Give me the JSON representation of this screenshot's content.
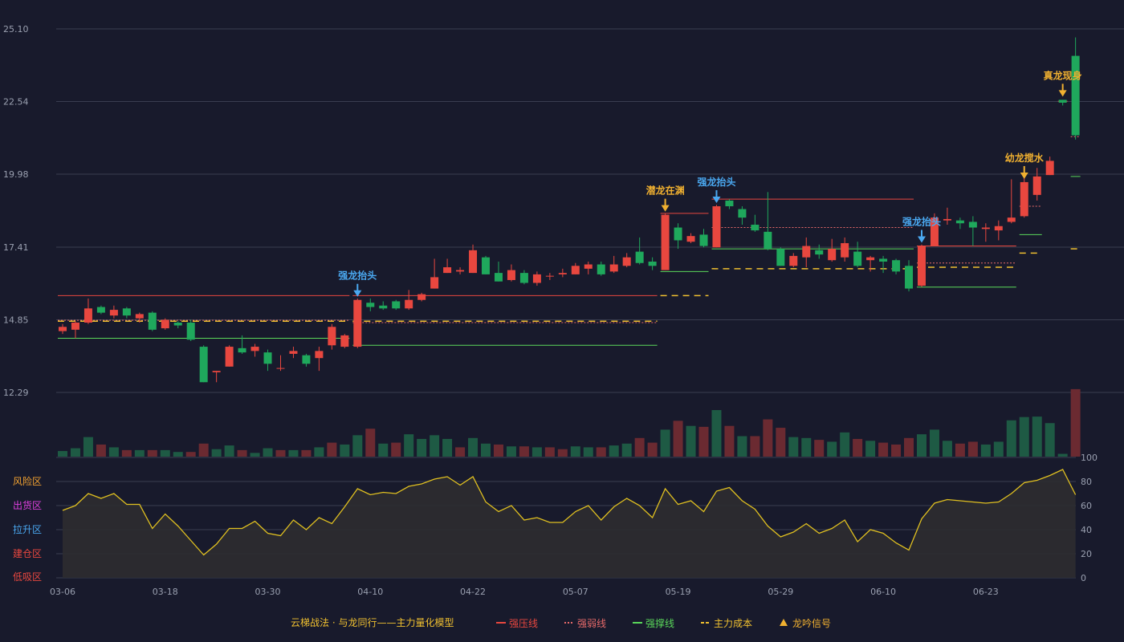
{
  "colors": {
    "background": "#181a2c",
    "grid": "#3a3d50",
    "up": "#e8473f",
    "down": "#1fa85c",
    "vol_up": "#6b2a31",
    "vol_down": "#1e5a44",
    "resist": "#e8473f",
    "weak": "#e86a6a",
    "support": "#5ad85a",
    "cost": "#f0c030",
    "signal": "#f0b030",
    "signal_blue": "#4aa8f0",
    "osc_line": "#e0c020",
    "osc_fill": "#2e2c30"
  },
  "legend": {
    "title": "云梯战法 · 与龙同行——主力量化模型",
    "items": [
      {
        "label": "强压线",
        "color": "#e8473f",
        "style": "solid"
      },
      {
        "label": "强弱线",
        "color": "#e86a6a",
        "style": "dotted"
      },
      {
        "label": "强撑线",
        "color": "#5ad85a",
        "style": "solid"
      },
      {
        "label": "主力成本",
        "color": "#f0c030",
        "style": "dashed"
      },
      {
        "label": "龙吟信号",
        "color": "#f0b030",
        "style": "triangle"
      }
    ]
  },
  "chart_data": {
    "type": "candlestick",
    "y_ticks": [
      "25.10",
      "22.54",
      "19.98",
      "17.41",
      "14.85",
      "12.29"
    ],
    "ylim": [
      12.29,
      25.1
    ],
    "x_ticks": [
      {
        "label": "03-06",
        "index": 0
      },
      {
        "label": "03-18",
        "index": 8
      },
      {
        "label": "03-30",
        "index": 16
      },
      {
        "label": "04-10",
        "index": 24
      },
      {
        "label": "04-22",
        "index": 32
      },
      {
        "label": "05-07",
        "index": 40
      },
      {
        "label": "05-19",
        "index": 48
      },
      {
        "label": "05-29",
        "index": 56
      },
      {
        "label": "06-10",
        "index": 64
      },
      {
        "label": "06-23",
        "index": 72
      }
    ],
    "candles": [
      [
        14.45,
        14.6,
        14.7,
        14.35
      ],
      [
        14.5,
        14.75,
        14.8,
        14.2
      ],
      [
        14.75,
        15.25,
        15.6,
        14.7
      ],
      [
        15.3,
        15.1,
        15.35,
        15.05
      ],
      [
        15.0,
        15.2,
        15.35,
        14.9
      ],
      [
        15.25,
        15.0,
        15.3,
        14.9
      ],
      [
        14.9,
        15.05,
        15.1,
        14.75
      ],
      [
        15.1,
        14.5,
        15.15,
        14.45
      ],
      [
        14.55,
        14.85,
        14.9,
        14.5
      ],
      [
        14.75,
        14.65,
        14.8,
        14.55
      ],
      [
        14.75,
        14.15,
        14.85,
        14.1
      ],
      [
        13.9,
        12.65,
        13.95,
        12.65
      ],
      [
        13.0,
        13.05,
        13.05,
        12.65
      ],
      [
        13.2,
        13.9,
        13.95,
        13.2
      ],
      [
        13.85,
        13.7,
        14.3,
        13.65
      ],
      [
        13.75,
        13.9,
        14.0,
        13.55
      ],
      [
        13.7,
        13.3,
        13.8,
        13.05
      ],
      [
        13.15,
        13.15,
        13.6,
        13.05
      ],
      [
        13.65,
        13.75,
        13.9,
        13.5
      ],
      [
        13.6,
        13.3,
        13.65,
        13.2
      ],
      [
        13.5,
        13.75,
        13.9,
        13.05
      ],
      [
        13.95,
        14.6,
        14.7,
        13.8
      ],
      [
        13.9,
        14.3,
        14.35,
        13.85
      ],
      [
        13.9,
        15.55,
        15.6,
        13.85
      ],
      [
        15.45,
        15.3,
        15.6,
        15.15
      ],
      [
        15.35,
        15.25,
        15.5,
        15.2
      ],
      [
        15.5,
        15.25,
        15.55,
        15.2
      ],
      [
        15.25,
        15.55,
        15.9,
        15.2
      ],
      [
        15.55,
        15.75,
        15.8,
        15.5
      ],
      [
        15.95,
        16.35,
        17.0,
        15.95
      ],
      [
        16.5,
        16.7,
        17.0,
        16.5
      ],
      [
        16.55,
        16.6,
        16.7,
        16.45
      ],
      [
        16.5,
        17.3,
        17.5,
        16.5
      ],
      [
        17.05,
        16.45,
        17.1,
        16.45
      ],
      [
        16.5,
        16.2,
        16.9,
        16.2
      ],
      [
        16.25,
        16.6,
        16.8,
        16.2
      ],
      [
        16.5,
        16.15,
        16.6,
        16.1
      ],
      [
        16.15,
        16.45,
        16.55,
        16.05
      ],
      [
        16.4,
        16.4,
        16.5,
        16.25
      ],
      [
        16.45,
        16.5,
        16.65,
        16.35
      ],
      [
        16.45,
        16.75,
        16.85,
        16.45
      ],
      [
        16.65,
        16.8,
        16.9,
        16.45
      ],
      [
        16.8,
        16.45,
        16.9,
        16.4
      ],
      [
        16.55,
        16.8,
        17.1,
        16.5
      ],
      [
        16.75,
        17.05,
        17.2,
        16.7
      ],
      [
        17.25,
        16.85,
        17.75,
        16.8
      ],
      [
        16.9,
        16.75,
        17.05,
        16.6
      ],
      [
        16.6,
        18.55,
        18.6,
        16.6
      ],
      [
        18.1,
        17.65,
        18.25,
        17.35
      ],
      [
        17.6,
        17.8,
        17.9,
        17.55
      ],
      [
        17.85,
        17.45,
        18.05,
        17.4
      ],
      [
        17.4,
        18.85,
        18.9,
        17.4
      ],
      [
        19.05,
        18.85,
        19.1,
        18.75
      ],
      [
        18.75,
        18.45,
        18.85,
        18.2
      ],
      [
        18.2,
        18.0,
        18.55,
        17.95
      ],
      [
        17.95,
        17.35,
        19.35,
        17.3
      ],
      [
        17.35,
        16.75,
        17.4,
        16.75
      ],
      [
        16.75,
        17.1,
        17.2,
        16.7
      ],
      [
        17.05,
        17.45,
        17.75,
        16.7
      ],
      [
        17.3,
        17.15,
        17.5,
        17.0
      ],
      [
        16.95,
        17.35,
        17.7,
        16.9
      ],
      [
        17.05,
        17.55,
        17.75,
        16.9
      ],
      [
        17.25,
        16.75,
        17.6,
        16.7
      ],
      [
        16.95,
        17.05,
        17.1,
        16.55
      ],
      [
        17.0,
        16.9,
        17.1,
        16.5
      ],
      [
        16.95,
        16.55,
        17.0,
        16.45
      ],
      [
        16.75,
        15.95,
        16.95,
        15.85
      ],
      [
        16.05,
        17.45,
        17.5,
        16.0
      ],
      [
        17.45,
        18.45,
        18.6,
        17.45
      ],
      [
        18.35,
        18.4,
        18.8,
        18.2
      ],
      [
        18.35,
        18.25,
        18.45,
        18.05
      ],
      [
        18.3,
        18.1,
        18.5,
        17.45
      ],
      [
        18.05,
        18.1,
        18.25,
        17.6
      ],
      [
        18.0,
        18.15,
        18.35,
        17.65
      ],
      [
        18.3,
        18.45,
        19.8,
        18.25
      ],
      [
        18.5,
        19.7,
        19.95,
        18.45
      ],
      [
        19.25,
        19.9,
        20.2,
        19.05
      ],
      [
        19.95,
        20.45,
        20.6,
        19.95
      ],
      [
        22.6,
        22.5,
        22.6,
        22.4
      ],
      [
        24.15,
        21.35,
        24.8,
        21.2
      ]
    ],
    "volume": [
      [
        0.12,
        "d"
      ],
      [
        0.18,
        "d"
      ],
      [
        0.42,
        "d"
      ],
      [
        0.26,
        "u"
      ],
      [
        0.2,
        "d"
      ],
      [
        0.14,
        "u"
      ],
      [
        0.14,
        "d"
      ],
      [
        0.14,
        "u"
      ],
      [
        0.14,
        "d"
      ],
      [
        0.1,
        "d"
      ],
      [
        0.1,
        "u"
      ],
      [
        0.28,
        "u"
      ],
      [
        0.16,
        "d"
      ],
      [
        0.24,
        "d"
      ],
      [
        0.14,
        "u"
      ],
      [
        0.08,
        "d"
      ],
      [
        0.18,
        "d"
      ],
      [
        0.14,
        "u"
      ],
      [
        0.14,
        "d"
      ],
      [
        0.14,
        "u"
      ],
      [
        0.2,
        "d"
      ],
      [
        0.3,
        "u"
      ],
      [
        0.26,
        "d"
      ],
      [
        0.46,
        "d"
      ],
      [
        0.6,
        "u"
      ],
      [
        0.28,
        "d"
      ],
      [
        0.3,
        "u"
      ],
      [
        0.48,
        "d"
      ],
      [
        0.38,
        "d"
      ],
      [
        0.46,
        "d"
      ],
      [
        0.38,
        "d"
      ],
      [
        0.2,
        "u"
      ],
      [
        0.4,
        "d"
      ],
      [
        0.28,
        "d"
      ],
      [
        0.26,
        "u"
      ],
      [
        0.22,
        "d"
      ],
      [
        0.22,
        "u"
      ],
      [
        0.2,
        "d"
      ],
      [
        0.2,
        "u"
      ],
      [
        0.16,
        "u"
      ],
      [
        0.22,
        "d"
      ],
      [
        0.2,
        "d"
      ],
      [
        0.2,
        "u"
      ],
      [
        0.24,
        "d"
      ],
      [
        0.28,
        "d"
      ],
      [
        0.4,
        "u"
      ],
      [
        0.3,
        "u"
      ],
      [
        0.58,
        "d"
      ],
      [
        0.77,
        "u"
      ],
      [
        0.66,
        "d"
      ],
      [
        0.64,
        "u"
      ],
      [
        1.0,
        "d"
      ],
      [
        0.66,
        "u"
      ],
      [
        0.44,
        "d"
      ],
      [
        0.44,
        "u"
      ],
      [
        0.8,
        "u"
      ],
      [
        0.62,
        "u"
      ],
      [
        0.42,
        "d"
      ],
      [
        0.4,
        "d"
      ],
      [
        0.36,
        "u"
      ],
      [
        0.32,
        "d"
      ],
      [
        0.52,
        "d"
      ],
      [
        0.38,
        "u"
      ],
      [
        0.34,
        "d"
      ],
      [
        0.3,
        "u"
      ],
      [
        0.26,
        "u"
      ],
      [
        0.4,
        "u"
      ],
      [
        0.48,
        "d"
      ],
      [
        0.58,
        "d"
      ],
      [
        0.34,
        "d"
      ],
      [
        0.28,
        "u"
      ],
      [
        0.32,
        "u"
      ],
      [
        0.26,
        "d"
      ],
      [
        0.32,
        "d"
      ],
      [
        0.78,
        "d"
      ],
      [
        0.85,
        "d"
      ],
      [
        0.86,
        "d"
      ],
      [
        0.72,
        "d"
      ],
      [
        0.06,
        "d"
      ],
      [
        1.45,
        "u"
      ]
    ],
    "oscillator": {
      "values": [
        56,
        60,
        70,
        66,
        70,
        61,
        61,
        41,
        53,
        43,
        31,
        19,
        28,
        41,
        41,
        47,
        37,
        35,
        48,
        40,
        50,
        45,
        59,
        74,
        69,
        71,
        70,
        76,
        78,
        82,
        84,
        77,
        84,
        63,
        55,
        60,
        48,
        50,
        46,
        46,
        55,
        60,
        48,
        59,
        66,
        60,
        50,
        74,
        61,
        64,
        55,
        72,
        75,
        64,
        57,
        43,
        34,
        38,
        45,
        37,
        41,
        48,
        30,
        40,
        37,
        29,
        23,
        49,
        62,
        65,
        64,
        63,
        62,
        63,
        70,
        79,
        81,
        85,
        90,
        69
      ],
      "ylim": [
        0,
        100
      ],
      "y_ticks": [
        "100",
        "80",
        "60",
        "40",
        "20",
        "0"
      ],
      "zones": [
        {
          "label": "风险区",
          "color": "#f0a030"
        },
        {
          "label": "出货区",
          "color": "#e040e0"
        },
        {
          "label": "拉升区",
          "color": "#4aa8f0"
        },
        {
          "label": "建仓区",
          "color": "#e8473f"
        },
        {
          "label": "低吸区",
          "color": "#e8473f"
        }
      ]
    },
    "lines": [
      {
        "kind": "resist",
        "from": 0,
        "to": 22,
        "y": 15.7
      },
      {
        "kind": "weak",
        "from": 0,
        "to": 22,
        "y": 14.83
      },
      {
        "kind": "cost",
        "from": 0,
        "to": 22,
        "y": 14.8
      },
      {
        "kind": "support",
        "from": 0,
        "to": 22,
        "y": 14.2
      },
      {
        "kind": "resist",
        "from": 23,
        "to": 46,
        "y": 15.7
      },
      {
        "kind": "weak",
        "from": 23,
        "to": 46,
        "y": 14.75
      },
      {
        "kind": "cost",
        "from": 23,
        "to": 46,
        "y": 14.8
      },
      {
        "kind": "support",
        "from": 23,
        "to": 46,
        "y": 13.95
      },
      {
        "kind": "resist",
        "from": 47,
        "to": 50,
        "y": 18.6
      },
      {
        "kind": "support",
        "from": 47,
        "to": 50,
        "y": 16.55
      },
      {
        "kind": "cost",
        "from": 47,
        "to": 50,
        "y": 15.7
      },
      {
        "kind": "resist",
        "from": 51,
        "to": 66,
        "y": 19.1
      },
      {
        "kind": "weak",
        "from": 51,
        "to": 66,
        "y": 18.1
      },
      {
        "kind": "support",
        "from": 51,
        "to": 66,
        "y": 17.35
      },
      {
        "kind": "cost",
        "from": 51,
        "to": 66,
        "y": 16.65
      },
      {
        "kind": "resist",
        "from": 67,
        "to": 74,
        "y": 17.45
      },
      {
        "kind": "weak",
        "from": 67,
        "to": 74,
        "y": 16.85
      },
      {
        "kind": "cost",
        "from": 67,
        "to": 74,
        "y": 16.7
      },
      {
        "kind": "support",
        "from": 67,
        "to": 74,
        "y": 16.0
      },
      {
        "kind": "weak",
        "from": 75,
        "to": 76,
        "y": 18.85
      },
      {
        "kind": "support",
        "from": 75,
        "to": 76,
        "y": 17.85
      },
      {
        "kind": "cost",
        "from": 75,
        "to": 76,
        "y": 17.2
      },
      {
        "kind": "resist",
        "from": 78,
        "to": 78,
        "y": 22.55
      },
      {
        "kind": "weak",
        "from": 79,
        "to": 79,
        "y": 21.3
      },
      {
        "kind": "support",
        "from": 79,
        "to": 79,
        "y": 19.9
      },
      {
        "kind": "cost",
        "from": 79,
        "to": 79,
        "y": 17.35
      }
    ],
    "signals": [
      {
        "index": 23,
        "label": "强龙抬头",
        "color": "blue",
        "y": 15.55
      },
      {
        "index": 47,
        "label": "潜龙在渊",
        "color": "gold",
        "y": 18.55
      },
      {
        "index": 51,
        "label": "强龙抬头",
        "color": "blue",
        "y": 18.85
      },
      {
        "index": 67,
        "label": "强龙抬头",
        "color": "blue",
        "y": 17.45
      },
      {
        "index": 75,
        "label": "幼龙搅水",
        "color": "gold",
        "y": 19.7
      },
      {
        "index": 78,
        "label": "真龙现身",
        "color": "gold",
        "y": 22.6
      }
    ]
  }
}
